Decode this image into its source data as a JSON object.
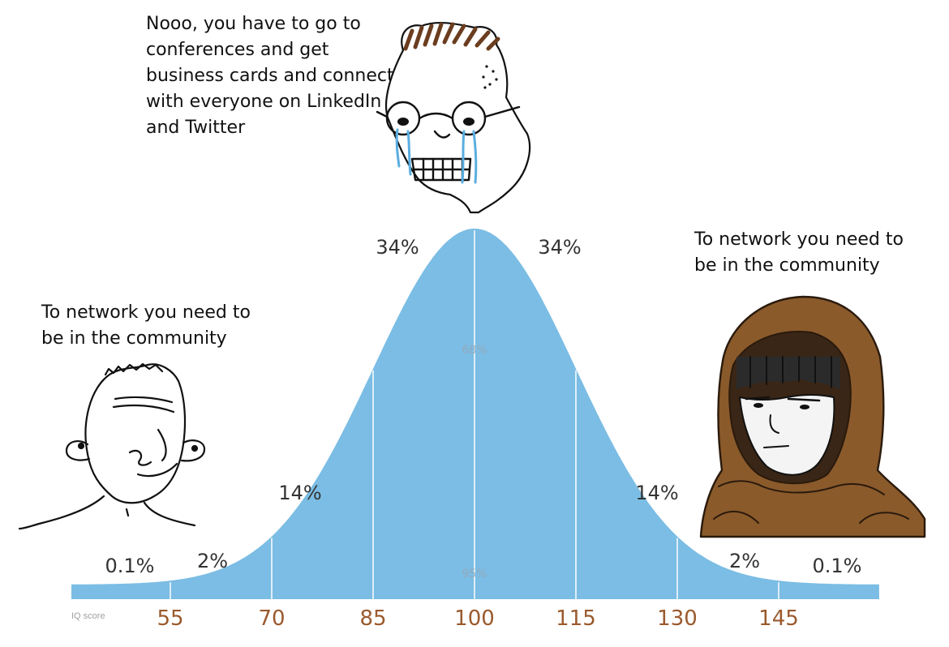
{
  "captions": {
    "top": "Nooo, you have to go to\nconferences and get\nbusiness cards and connect\nwith everyone on LinkedIn\nand Twitter",
    "left": "To network you need to\nbe in the community",
    "right": "To network you need to\nbe in the community"
  },
  "chart_data": {
    "type": "area",
    "distribution": "normal",
    "mean": 100,
    "sd": 15,
    "xlabel": "IQ score",
    "x_ticks": [
      "55",
      "70",
      "85",
      "100",
      "115",
      "130",
      "145"
    ],
    "band_percentages": [
      "0.1%",
      "2%",
      "14%",
      "34%",
      "34%",
      "14%",
      "2%",
      "0.1%"
    ],
    "inner_labels": [
      "68%",
      "95%"
    ],
    "fill_color": "#7bbde4",
    "tick_color": "#9a5a2e"
  },
  "characters": {
    "left": "wojak-smiling-simple",
    "top": "wojak-crying-glasses",
    "right": "hooded-figure"
  }
}
